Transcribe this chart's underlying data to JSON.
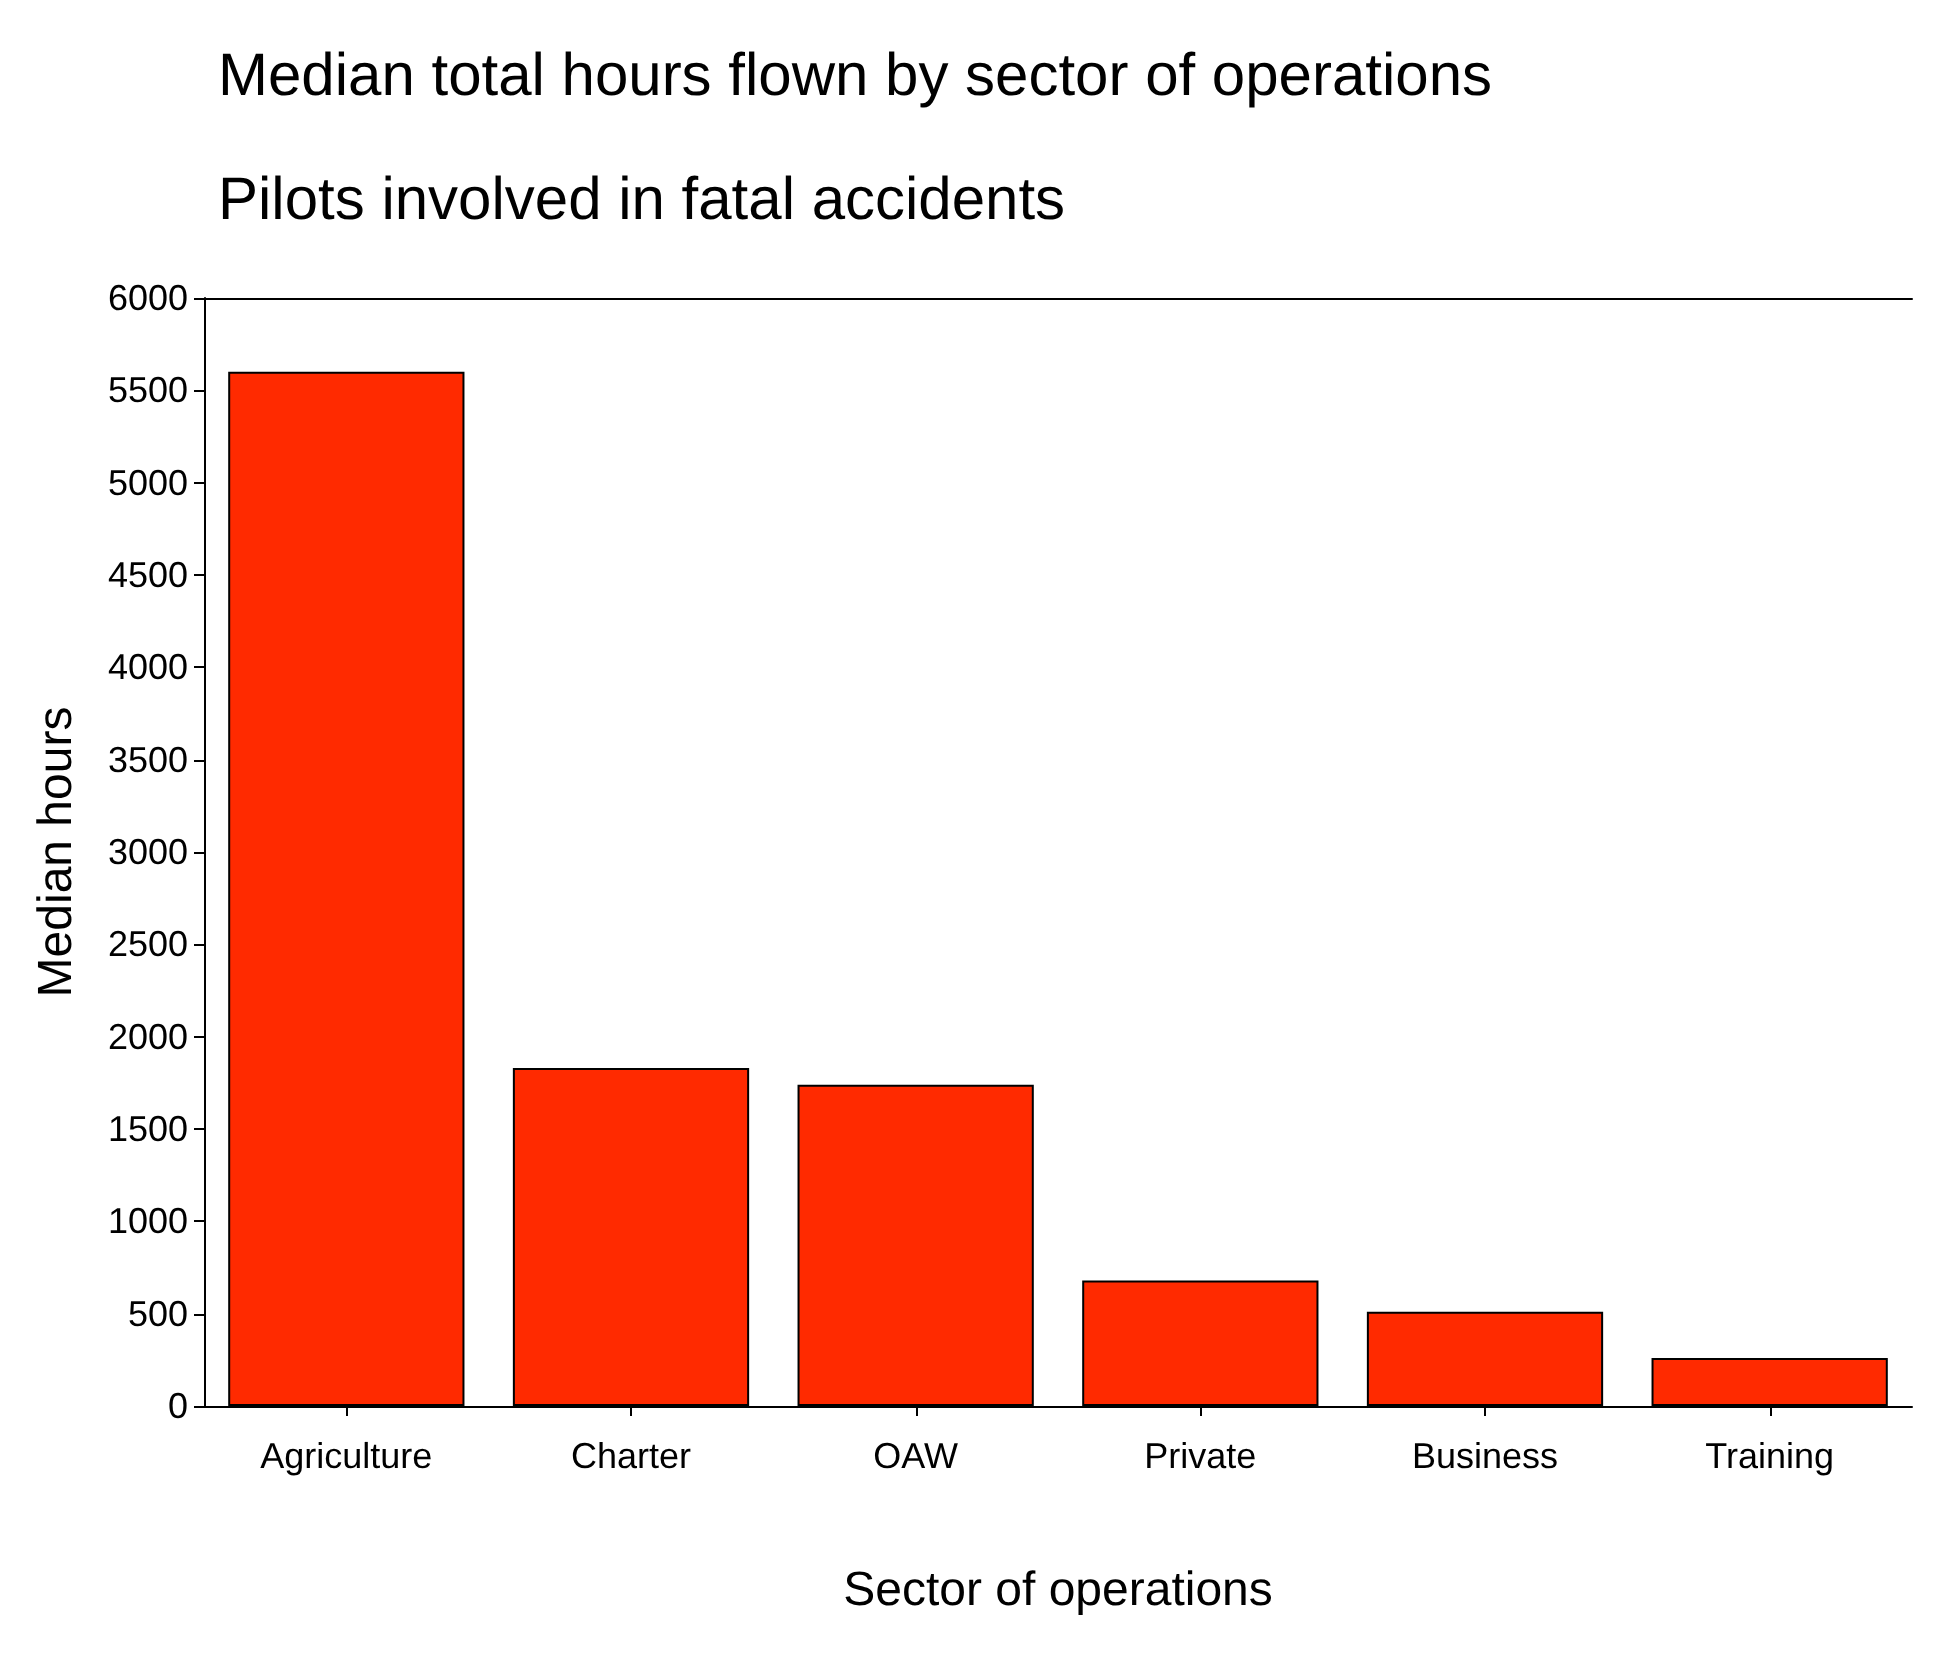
{
  "chart_data": {
    "type": "bar",
    "title": "Median total hours flown by sector of operations",
    "subtitle": "Pilots involved in fatal accidents",
    "xlabel": "Sector of operations",
    "ylabel": "Median hours",
    "categories": [
      "Agriculture",
      "Charter",
      "OAW",
      "Private",
      "Business",
      "Training"
    ],
    "values": [
      5600,
      1830,
      1740,
      680,
      510,
      260
    ],
    "color": "#ff2a00",
    "ylim": [
      0,
      6000
    ],
    "yticks": [
      0,
      500,
      1000,
      1500,
      2000,
      2500,
      3000,
      3500,
      4000,
      4500,
      5000,
      5500,
      6000
    ],
    "grid": false
  }
}
